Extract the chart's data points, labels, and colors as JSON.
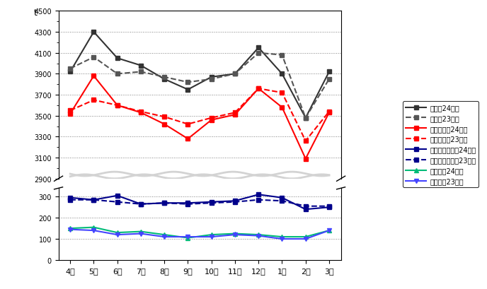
{
  "months": [
    "4月",
    "5月",
    "6月",
    "7月",
    "8月",
    "9月",
    "10月",
    "11月",
    "12月",
    "1月",
    "2月",
    "3月"
  ],
  "goukeiru24": [
    3920,
    4300,
    4050,
    3980,
    3850,
    3750,
    3870,
    3900,
    4150,
    3900,
    3480,
    3920
  ],
  "goukeiru23": [
    3950,
    4060,
    3900,
    3920,
    3870,
    3820,
    3850,
    3900,
    4100,
    4080,
    3480,
    3850
  ],
  "moeyasu24": [
    3520,
    3880,
    3600,
    3530,
    3420,
    3280,
    3460,
    3510,
    3760,
    3580,
    3090,
    3530
  ],
  "moeyasu23": [
    3550,
    3650,
    3600,
    3540,
    3490,
    3420,
    3480,
    3530,
    3760,
    3720,
    3260,
    3540
  ],
  "moenai24": [
    295,
    285,
    305,
    265,
    270,
    270,
    275,
    280,
    310,
    295,
    240,
    250
  ],
  "moenai23": [
    285,
    285,
    275,
    265,
    270,
    265,
    270,
    275,
    285,
    280,
    255,
    255
  ],
  "sodai24": [
    150,
    155,
    130,
    135,
    120,
    105,
    120,
    125,
    120,
    110,
    110,
    140
  ],
  "sodai23": [
    145,
    140,
    120,
    125,
    110,
    110,
    110,
    120,
    115,
    100,
    100,
    140
  ],
  "colors": {
    "goukeiru24": "#333333",
    "goukeiru23": "#555555",
    "moeyasu": "#ff0000",
    "moenai": "#00008b",
    "sodai24": "#00bb77",
    "sodai23": "#4444ff"
  }
}
